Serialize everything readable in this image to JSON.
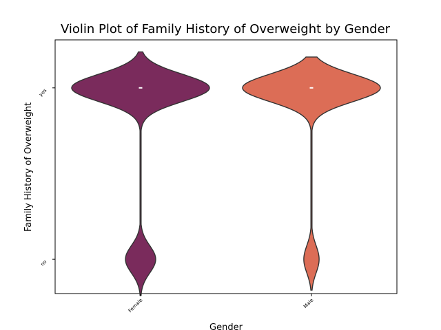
{
  "chart_data": {
    "type": "violin",
    "title": "Violin Plot of Family History of Overweight by Gender",
    "xlabel": "Gender",
    "ylabel": "Family History of Overweight",
    "categories": [
      "Female",
      "Male"
    ],
    "y_categories": [
      "no",
      "yes"
    ],
    "ylim": [
      -0.2,
      1.28
    ],
    "grid": false,
    "series": [
      {
        "category": "Female",
        "color": "#7a2b5c",
        "share_yes": 0.82,
        "share_no": 0.18,
        "median": "yes",
        "extent": [
          -0.21,
          1.21
        ]
      },
      {
        "category": "Male",
        "color": "#dc6d56",
        "share_yes": 0.9,
        "share_no": 0.1,
        "median": "yes",
        "extent": [
          -0.18,
          1.18
        ]
      }
    ]
  }
}
